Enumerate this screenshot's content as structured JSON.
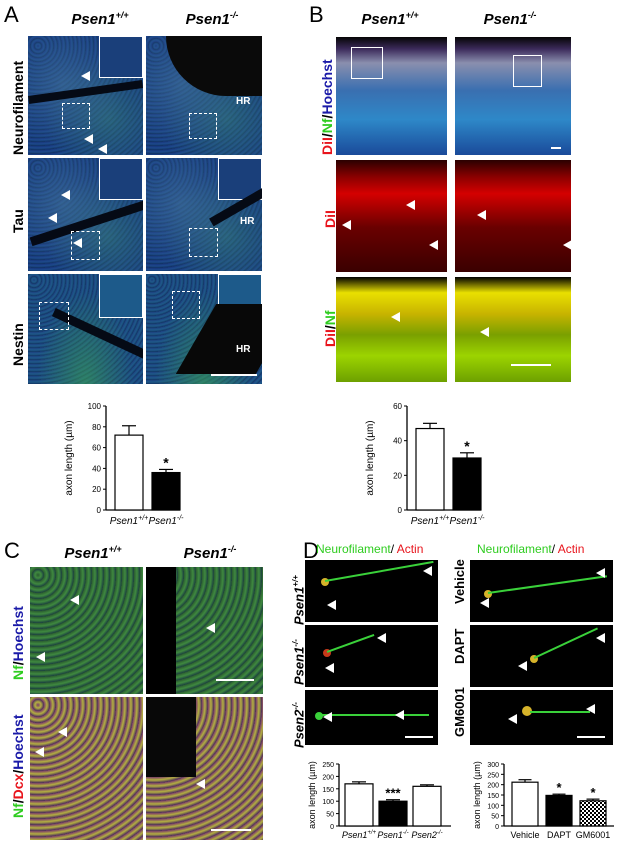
{
  "panel_letters": {
    "a": "A",
    "b": "B",
    "c": "C",
    "d": "D"
  },
  "panelA": {
    "col_headers": [
      "Psen1",
      "Psen1"
    ],
    "col_sups": [
      "+/+",
      "-/-"
    ],
    "row_labels": [
      "Neurofilament",
      "Tau",
      "Nestin"
    ],
    "hr_label": "HR"
  },
  "panelB": {
    "col_headers": [
      "Psen1",
      "Psen1"
    ],
    "col_sups": [
      "+/+",
      "-/-"
    ],
    "row1_label_parts": [
      "DiI",
      "/",
      "Nf",
      "/",
      "Hoechst"
    ],
    "row2_label": "DiI",
    "row3_label_parts": [
      "DiI",
      "/",
      "Nf"
    ]
  },
  "panelC": {
    "col_headers": [
      "Psen1",
      "Psen1"
    ],
    "col_sups": [
      "+/+",
      "-/-"
    ],
    "row1_label_parts": [
      "Nf",
      "/",
      "Hoechst"
    ],
    "row2_label_parts": [
      "Nf",
      "/",
      "Dcx",
      "/",
      "Hoechst"
    ]
  },
  "panelD": {
    "left_title_parts": [
      "Neurofilament",
      "/ ",
      "Actin"
    ],
    "right_title_parts": [
      "Neurofilament",
      "/ ",
      "Actin"
    ],
    "left_row_labels": [
      "Psen1",
      "Psen1",
      "Psen2"
    ],
    "left_row_sups": [
      "+/+",
      "-/-",
      "-/-"
    ],
    "right_row_labels": [
      "Vehicle",
      "DAPT",
      "GM6001"
    ]
  },
  "colors": {
    "red": "#e8141c",
    "green": "#2ecc1f",
    "blue": "#1a1aa8"
  },
  "chart_data": [
    {
      "type": "bar",
      "panel": "A",
      "categories": [
        "Psen1+/+",
        "Psen1-/-"
      ],
      "values": [
        72,
        36
      ],
      "errors": [
        9,
        3
      ],
      "fills": [
        "#ffffff",
        "#000000"
      ],
      "ylabel": "axon length (µm)",
      "ylim": [
        0,
        100
      ],
      "yticks": [
        0,
        20,
        40,
        60,
        80,
        100
      ],
      "annotations": [
        "",
        "*"
      ]
    },
    {
      "type": "bar",
      "panel": "B",
      "categories": [
        "Psen1+/+",
        "Psen1-/-"
      ],
      "values": [
        47,
        30
      ],
      "errors": [
        3,
        3
      ],
      "fills": [
        "#ffffff",
        "#000000"
      ],
      "ylabel": "axon length (µm)",
      "ylim": [
        0,
        60
      ],
      "yticks": [
        0,
        20,
        40,
        60
      ],
      "annotations": [
        "",
        "*"
      ]
    },
    {
      "type": "bar",
      "panel": "D-left",
      "categories": [
        "Psen1+/+",
        "Psen1-/-",
        "Psen2-/-"
      ],
      "values": [
        170,
        100,
        160
      ],
      "errors": [
        8,
        6,
        6
      ],
      "fills": [
        "#ffffff",
        "#000000",
        "#ffffff"
      ],
      "ylabel": "axon length (µm)",
      "ylim": [
        0,
        250
      ],
      "yticks": [
        0,
        50,
        100,
        150,
        200,
        250
      ],
      "annotations": [
        "",
        "***",
        ""
      ]
    },
    {
      "type": "bar",
      "panel": "D-right",
      "categories": [
        "Vehicle",
        "DAPT",
        "GM6001"
      ],
      "values": [
        212,
        148,
        122
      ],
      "errors": [
        12,
        6,
        8
      ],
      "fills": [
        "#ffffff",
        "#000000",
        "checker"
      ],
      "ylabel": "axon length (µm)",
      "ylim": [
        0,
        300
      ],
      "yticks": [
        0,
        50,
        100,
        150,
        200,
        250,
        300
      ],
      "annotations": [
        "",
        "*",
        "*"
      ]
    }
  ]
}
